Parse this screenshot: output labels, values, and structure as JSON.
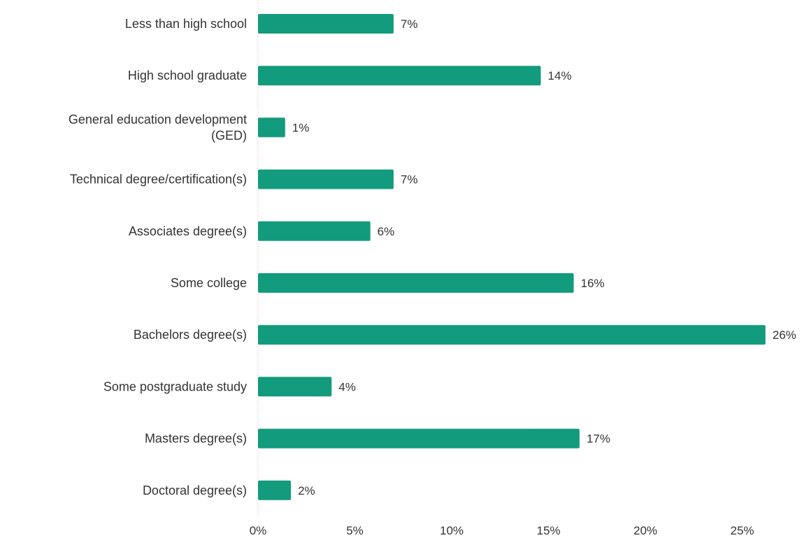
{
  "chart_data": {
    "type": "bar",
    "orientation": "horizontal",
    "categories": [
      "Less than high school",
      "High school graduate",
      "General education development (GED)",
      "Technical degree/certification(s)",
      "Associates degree(s)",
      "Some college",
      "Bachelors degree(s)",
      "Some postgraduate study",
      "Masters degree(s)",
      "Doctoral degree(s)"
    ],
    "category_lines": [
      [
        "Less than high school"
      ],
      [
        "High school graduate"
      ],
      [
        "General education development",
        "(GED)"
      ],
      [
        "Technical degree/certification(s)"
      ],
      [
        "Associates degree(s)"
      ],
      [
        "Some college"
      ],
      [
        "Bachelors degree(s)"
      ],
      [
        "Some postgraduate study"
      ],
      [
        "Masters degree(s)"
      ],
      [
        "Doctoral degree(s)"
      ]
    ],
    "values": [
      7,
      14,
      1,
      7,
      6,
      16,
      26,
      4,
      17,
      2
    ],
    "data_labels": [
      "7%",
      "14%",
      "1%",
      "7%",
      "6%",
      "16%",
      "26%",
      "4%",
      "17%",
      "2%"
    ],
    "plotted_values": [
      7,
      14.6,
      1.4,
      7,
      5.8,
      16.3,
      26.2,
      3.8,
      16.6,
      1.7
    ],
    "x_ticks": [
      0,
      5,
      10,
      15,
      20,
      25
    ],
    "x_tick_labels": [
      "0%",
      "5%",
      "10%",
      "15%",
      "20%",
      "25%"
    ],
    "xlim": [
      0,
      28
    ],
    "title": "",
    "xlabel": "",
    "ylabel": "",
    "grid": false,
    "legend": "none",
    "bar_color": "#129B7C",
    "text_color": "#333333",
    "axis_color": "#F2C9C9"
  }
}
